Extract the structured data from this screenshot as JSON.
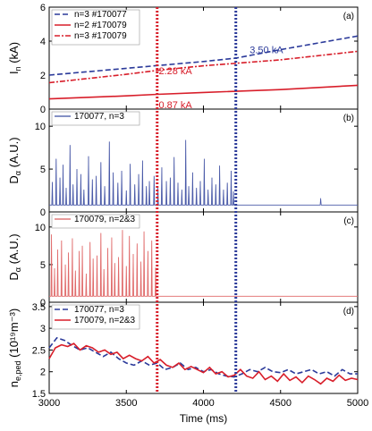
{
  "chart_data": {
    "type": "line",
    "xlabel": "Time (ms)",
    "xlim": [
      3000,
      5000
    ],
    "xticks": [
      "3000",
      "3500",
      "4000",
      "4500",
      "5000"
    ],
    "vlines": [
      {
        "x": 3700,
        "color": "#d81e2a"
      },
      {
        "x": 4210,
        "color": "#2b3a9a"
      }
    ],
    "panels": [
      {
        "id": "a",
        "label": "(a)",
        "ylabel_main": "I",
        "ylabel_sub": "n",
        "ylabel_unit": " (kA)",
        "ylim": [
          0,
          6
        ],
        "yticks": [
          "0",
          "2",
          "4",
          "6"
        ],
        "legend": [
          {
            "name": "n=3 #170077",
            "color": "#2b3a9a",
            "dash": "6,3"
          },
          {
            "name": "n=2 #170079",
            "color": "#d81e2a",
            "dash": ""
          },
          {
            "name": "n=3 #170079",
            "color": "#d81e2a",
            "dash": "6,2,2,2"
          }
        ],
        "annotations": [
          {
            "text": "3.50 kA",
            "x": 4300,
            "y": 3.3,
            "color": "#2b3a9a"
          },
          {
            "text": "2.28 kA",
            "x": 3710,
            "y": 2.05,
            "color": "#d81e2a"
          },
          {
            "text": "0.87 kA",
            "x": 3710,
            "y": 0.05,
            "color": "#d81e2a"
          }
        ],
        "series": [
          {
            "name": "n=3 #170077",
            "x": [
              3000,
              3500,
              4000,
              4210,
              4500,
              5000
            ],
            "y": [
              2.0,
              2.4,
              2.8,
              3.0,
              3.5,
              4.3
            ],
            "color": "#2b3a9a",
            "dash": "6,3"
          },
          {
            "name": "n=2 #170079",
            "x": [
              3000,
              3500,
              3700,
              4000,
              4500,
              5000
            ],
            "y": [
              0.6,
              0.78,
              0.87,
              0.98,
              1.15,
              1.4
            ],
            "color": "#d81e2a",
            "dash": ""
          },
          {
            "name": "n=3 #170079",
            "x": [
              3000,
              3500,
              3700,
              4000,
              4500,
              5000
            ],
            "y": [
              1.55,
              2.05,
              2.28,
              2.55,
              2.9,
              3.4
            ],
            "color": "#d81e2a",
            "dash": "6,2,2,2"
          }
        ]
      },
      {
        "id": "b",
        "label": "(b)",
        "ylabel_main": "D",
        "ylabel_sub": "α",
        "ylabel_unit": " (A.U.)",
        "ylim": [
          0,
          12
        ],
        "yticks": [
          "0",
          "5",
          "10"
        ],
        "legend": [
          {
            "name": "170077, n=3",
            "color": "#5b6bb0",
            "dash": ""
          }
        ],
        "baseline": 0.8,
        "color": "#4a5aa8",
        "elm_x": [
          3020,
          3045,
          3070,
          3090,
          3110,
          3135,
          3155,
          3180,
          3205,
          3225,
          3255,
          3280,
          3305,
          3335,
          3360,
          3390,
          3415,
          3445,
          3470,
          3500,
          3525,
          3555,
          3580,
          3605,
          3630,
          3650,
          3680,
          3705,
          3730,
          3760,
          3785,
          3810,
          3835,
          3860,
          3885,
          3905,
          3930,
          3955,
          3980,
          4005,
          4030,
          4055,
          4080,
          4105,
          4130,
          4155,
          4180,
          4195
        ],
        "elm_y": [
          3.5,
          6.2,
          4.0,
          5.5,
          2.8,
          7.8,
          3.2,
          5.0,
          4.4,
          2.6,
          6.5,
          3.8,
          4.2,
          5.8,
          3.0,
          8.2,
          4.6,
          3.4,
          4.8,
          2.5,
          5.6,
          3.2,
          4.4,
          6.0,
          3.0,
          3.6,
          4.2,
          2.8,
          5.2,
          3.6,
          4.0,
          6.4,
          3.4,
          2.6,
          8.4,
          3.0,
          4.6,
          2.8,
          3.6,
          6.2,
          2.6,
          4.0,
          3.2,
          5.4,
          2.6,
          3.4,
          4.8,
          2.4
        ],
        "post_bumps": [
          {
            "x": 4760,
            "y": 1.6
          }
        ]
      },
      {
        "id": "c",
        "label": "(c)",
        "ylabel_main": "D",
        "ylabel_sub": "α",
        "ylabel_unit": " (A.U.)",
        "ylim": [
          0,
          12
        ],
        "yticks": [
          "0",
          "5",
          "10"
        ],
        "legend": [
          {
            "name": "170079, n=2&3",
            "color": "#e07a7a",
            "dash": ""
          }
        ],
        "baseline": 0.8,
        "color": "#e06a6a",
        "elm_x": [
          3015,
          3035,
          3055,
          3080,
          3105,
          3125,
          3150,
          3170,
          3195,
          3215,
          3240,
          3265,
          3285,
          3310,
          3335,
          3355,
          3380,
          3405,
          3425,
          3450,
          3475,
          3500,
          3520,
          3545,
          3570,
          3595,
          3615,
          3640,
          3665,
          3690
        ],
        "elm_y": [
          9.0,
          4.5,
          7.0,
          8.2,
          5.0,
          6.6,
          8.5,
          4.2,
          6.8,
          7.5,
          3.8,
          8.0,
          5.8,
          6.2,
          9.2,
          4.4,
          7.2,
          8.6,
          5.2,
          6.0,
          9.6,
          4.8,
          8.8,
          6.4,
          7.8,
          5.4,
          9.4,
          6.8,
          8.2,
          4.6
        ],
        "post_bumps": []
      },
      {
        "id": "d",
        "label": "(d)",
        "ylabel_main": "n",
        "ylabel_sub": "e,ped",
        "ylabel_unit": " (10¹⁹m⁻³)",
        "ylim": [
          1.5,
          3.6
        ],
        "yticks": [
          "1.5",
          "2",
          "2.5",
          "3",
          "3.5"
        ],
        "legend": [
          {
            "name": "170077, n=3",
            "color": "#2b3a9a",
            "dash": "6,3"
          },
          {
            "name": "170079, n=2&3",
            "color": "#d81e2a",
            "dash": ""
          }
        ],
        "series": [
          {
            "name": "170077, n=3",
            "x": [
              3000,
              3050,
              3100,
              3150,
              3200,
              3250,
              3300,
              3350,
              3400,
              3450,
              3500,
              3550,
              3600,
              3650,
              3700,
              3750,
              3800,
              3850,
              3900,
              3950,
              4000,
              4050,
              4100,
              4150,
              4200,
              4250,
              4300,
              4350,
              4400,
              4450,
              4500,
              4550,
              4600,
              4650,
              4700,
              4750,
              4800,
              4850,
              4900,
              4950,
              5000
            ],
            "y": [
              2.55,
              2.78,
              2.72,
              2.6,
              2.5,
              2.55,
              2.45,
              2.35,
              2.45,
              2.3,
              2.2,
              2.15,
              2.25,
              2.15,
              2.2,
              2.05,
              2.1,
              2.2,
              2.05,
              2.1,
              2.0,
              2.05,
              1.95,
              1.9,
              1.88,
              1.95,
              2.05,
              2.0,
              2.1,
              2.0,
              1.98,
              2.05,
              1.95,
              2.0,
              2.05,
              1.95,
              2.0,
              1.9,
              2.05,
              1.95,
              1.95
            ],
            "color": "#2b3a9a",
            "dash": "6,3"
          },
          {
            "name": "170079, n=2&3",
            "x": [
              3000,
              3040,
              3080,
              3120,
              3160,
              3200,
              3240,
              3280,
              3320,
              3360,
              3400,
              3440,
              3480,
              3520,
              3560,
              3600,
              3640,
              3680,
              3720,
              3760,
              3800,
              3840,
              3880,
              3920,
              3960,
              4000,
              4040,
              4080,
              4120,
              4160,
              4200,
              4240,
              4280,
              4320,
              4360,
              4400,
              4440,
              4480,
              4520,
              4560,
              4600,
              4640,
              4680,
              4720,
              4760,
              4800,
              4840,
              4880,
              4920,
              4960,
              5000
            ],
            "y": [
              2.3,
              2.55,
              2.62,
              2.58,
              2.65,
              2.5,
              2.6,
              2.55,
              2.45,
              2.5,
              2.4,
              2.45,
              2.3,
              2.38,
              2.3,
              2.25,
              2.35,
              2.2,
              2.28,
              2.15,
              2.1,
              2.2,
              2.05,
              2.12,
              2.05,
              1.98,
              2.1,
              1.95,
              2.0,
              1.88,
              1.92,
              2.05,
              1.9,
              1.85,
              2.0,
              1.82,
              1.9,
              1.78,
              1.95,
              1.8,
              1.88,
              1.75,
              1.9,
              1.82,
              1.72,
              1.85,
              1.78,
              1.92,
              1.8,
              1.85,
              1.82
            ],
            "color": "#d81e2a",
            "dash": ""
          }
        ]
      }
    ]
  }
}
